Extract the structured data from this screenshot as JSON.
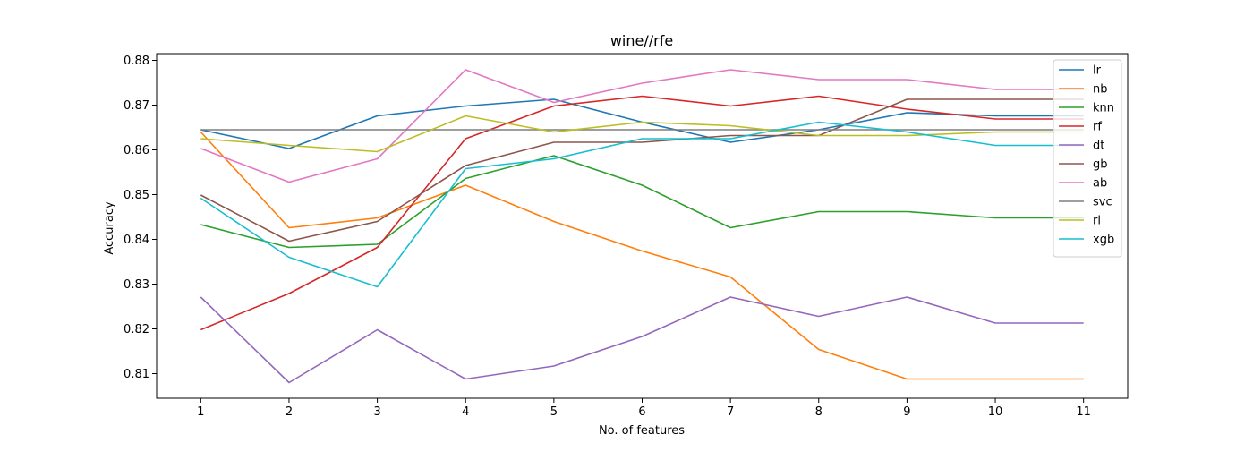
{
  "chart_data": {
    "type": "line",
    "title": "wine//rfe",
    "xlabel": "No. of features",
    "ylabel": "Accuracy",
    "x": [
      1,
      2,
      3,
      4,
      5,
      6,
      7,
      8,
      9,
      10,
      11
    ],
    "xlim": [
      0.5,
      11.5
    ],
    "ylim": [
      0.8045,
      0.8815
    ],
    "yticks": [
      0.81,
      0.82,
      0.83,
      0.84,
      0.85,
      0.86,
      0.87,
      0.88
    ],
    "ytick_labels": [
      "0.81",
      "0.82",
      "0.83",
      "0.84",
      "0.85",
      "0.86",
      "0.87",
      "0.88"
    ],
    "xticks": [
      1,
      2,
      3,
      4,
      5,
      6,
      7,
      8,
      9,
      10,
      11
    ],
    "xtick_labels": [
      "1",
      "2",
      "3",
      "4",
      "5",
      "6",
      "7",
      "8",
      "9",
      "10",
      "11"
    ],
    "grid": false,
    "legend_position": "top-right",
    "series": [
      {
        "name": "lr",
        "color": "#1f77b4",
        "values": [
          0.8645,
          0.8603,
          0.8676,
          0.8698,
          0.8713,
          0.8662,
          0.8617,
          0.8645,
          0.8683,
          0.8676,
          0.8676
        ]
      },
      {
        "name": "nb",
        "color": "#ff7f0e",
        "values": [
          0.864,
          0.8426,
          0.8448,
          0.8521,
          0.844,
          0.8374,
          0.8316,
          0.8154,
          0.8088,
          0.8088,
          0.8088
        ]
      },
      {
        "name": "knn",
        "color": "#2ca02c",
        "values": [
          0.8433,
          0.8382,
          0.8389,
          0.8536,
          0.8587,
          0.8521,
          0.8426,
          0.8462,
          0.8462,
          0.8448,
          0.8448
        ]
      },
      {
        "name": "rf",
        "color": "#d62728",
        "values": [
          0.8198,
          0.8279,
          0.8382,
          0.8625,
          0.8698,
          0.872,
          0.8698,
          0.872,
          0.8691,
          0.8669,
          0.8669
        ]
      },
      {
        "name": "dt",
        "color": "#9467bd",
        "values": [
          0.8271,
          0.808,
          0.8198,
          0.8088,
          0.8117,
          0.8183,
          0.8271,
          0.8228,
          0.8271,
          0.8213,
          0.8213
        ]
      },
      {
        "name": "gb",
        "color": "#8c564b",
        "values": [
          0.8499,
          0.8396,
          0.844,
          0.8565,
          0.8617,
          0.8617,
          0.8632,
          0.8632,
          0.8713,
          0.8713,
          0.8713
        ]
      },
      {
        "name": "ab",
        "color": "#e377c2",
        "values": [
          0.8603,
          0.8528,
          0.858,
          0.8779,
          0.8706,
          0.8749,
          0.8779,
          0.8757,
          0.8757,
          0.8735,
          0.8735
        ]
      },
      {
        "name": "svc",
        "color": "#7f7f7f",
        "values": [
          0.8645,
          0.8645,
          0.8645,
          0.8645,
          0.8645,
          0.8645,
          0.8645,
          0.8645,
          0.8645,
          0.8645,
          0.8645
        ]
      },
      {
        "name": "ri",
        "color": "#bcbd22",
        "values": [
          0.8625,
          0.861,
          0.8596,
          0.8676,
          0.864,
          0.8662,
          0.8654,
          0.8632,
          0.8632,
          0.864,
          0.864
        ]
      },
      {
        "name": "xgb",
        "color": "#17becf",
        "values": [
          0.8492,
          0.836,
          0.8294,
          0.8558,
          0.858,
          0.8625,
          0.8625,
          0.8662,
          0.864,
          0.861,
          0.861
        ]
      }
    ]
  }
}
